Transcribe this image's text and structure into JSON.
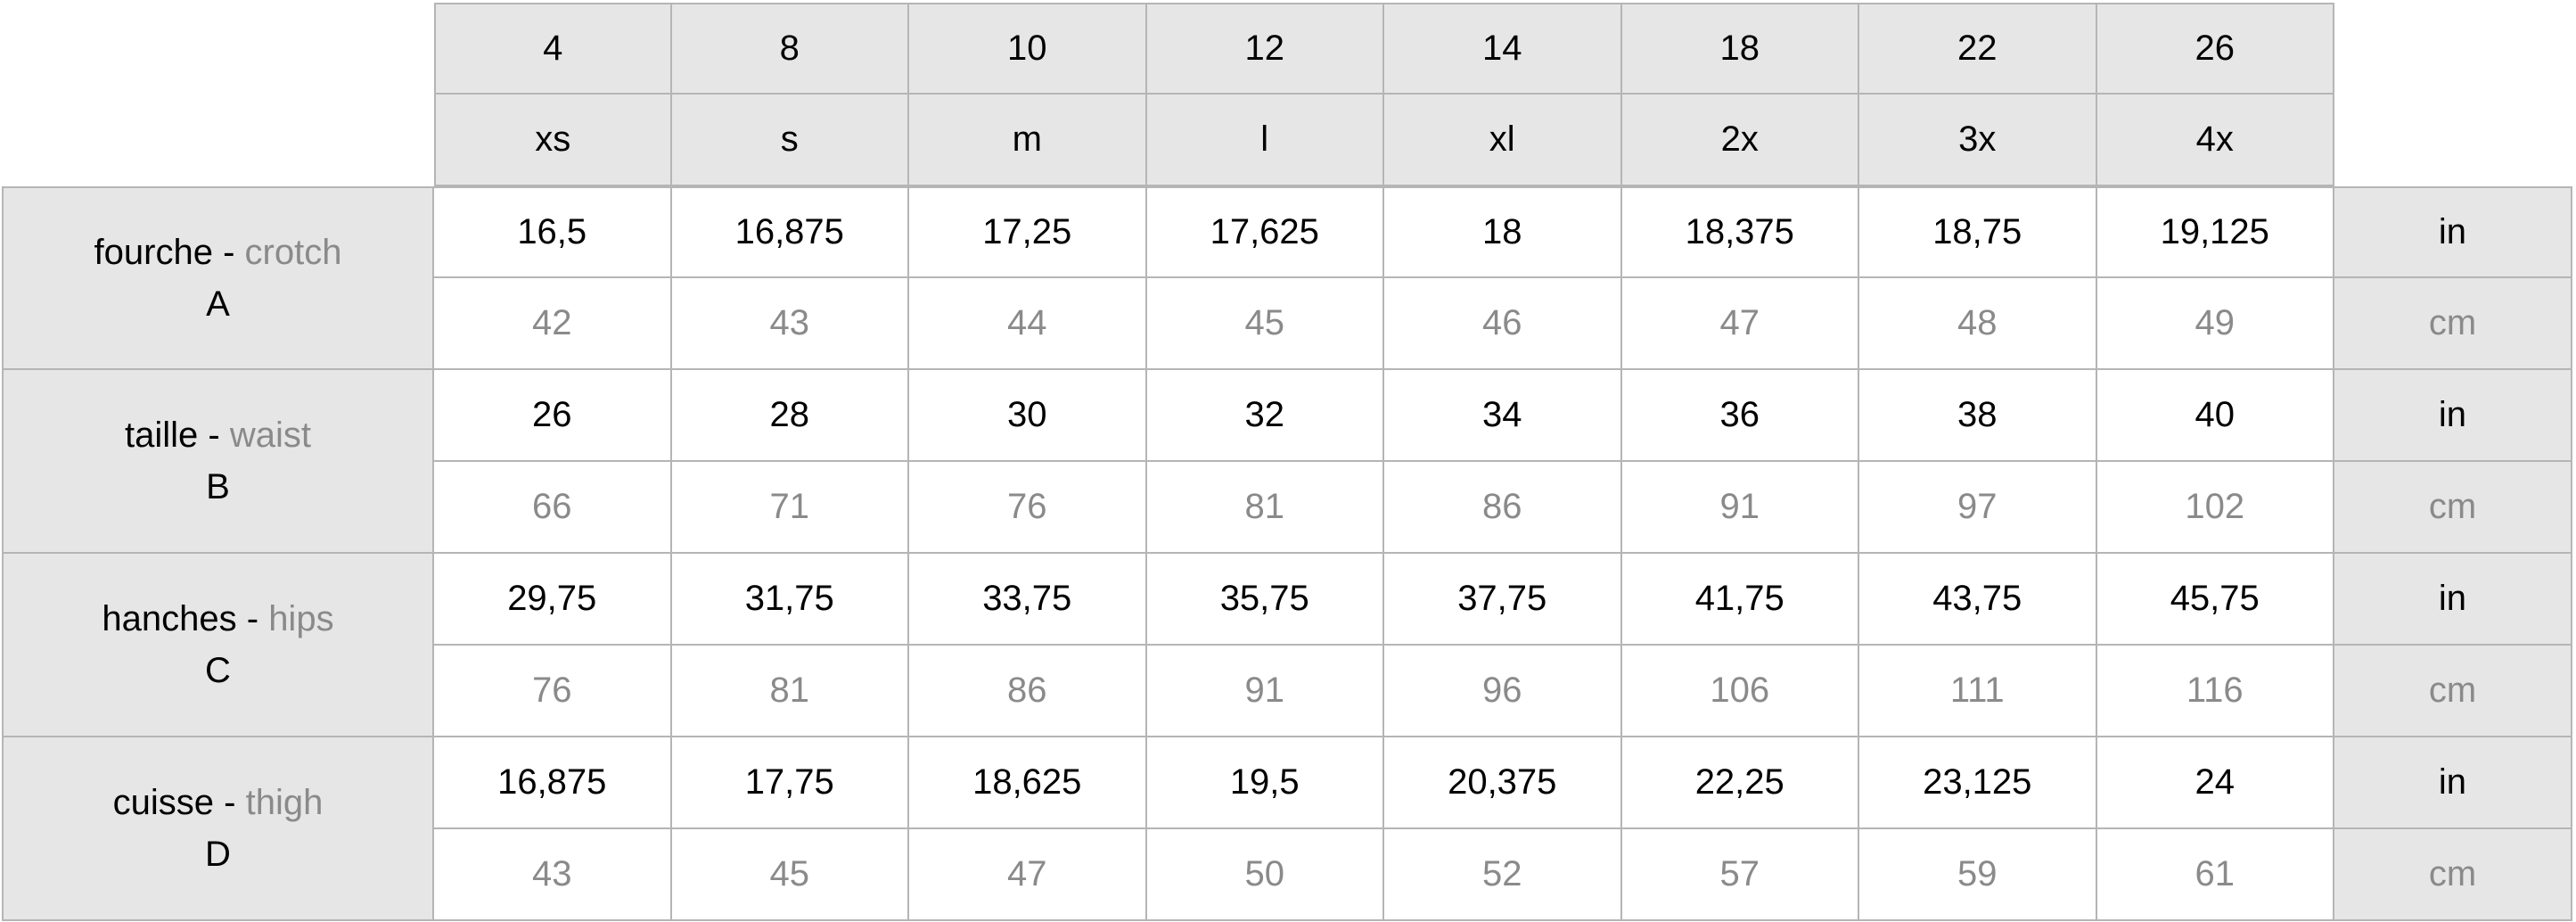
{
  "header": {
    "sizes_numeric": [
      "4",
      "8",
      "10",
      "12",
      "14",
      "18",
      "22",
      "26"
    ],
    "sizes_letter": [
      "xs",
      "s",
      "m",
      "l",
      "xl",
      "2x",
      "3x",
      "4x"
    ]
  },
  "rows": [
    {
      "fr": "fourche",
      "sep": " - ",
      "en": "crotch",
      "letter": "A",
      "in": [
        "16,5",
        "16,875",
        "17,25",
        "17,625",
        "18",
        "18,375",
        "18,75",
        "19,125"
      ],
      "cm": [
        "42",
        "43",
        "44",
        "45",
        "46",
        "47",
        "48",
        "49"
      ]
    },
    {
      "fr": "taille",
      "sep": " - ",
      "en": "waist",
      "letter": "B",
      "in": [
        "26",
        "28",
        "30",
        "32",
        "34",
        "36",
        "38",
        "40"
      ],
      "cm": [
        "66",
        "71",
        "76",
        "81",
        "86",
        "91",
        "97",
        "102"
      ]
    },
    {
      "fr": "hanches",
      "sep": " - ",
      "en": "hips",
      "letter": "C",
      "in": [
        "29,75",
        "31,75",
        "33,75",
        "35,75",
        "37,75",
        "41,75",
        "43,75",
        "45,75"
      ],
      "cm": [
        "76",
        "81",
        "86",
        "91",
        "96",
        "106",
        "111",
        "116"
      ]
    },
    {
      "fr": "cuisse",
      "sep": " - ",
      "en": "thigh",
      "letter": "D",
      "in": [
        "16,875",
        "17,75",
        "18,625",
        "19,5",
        "20,375",
        "22,25",
        "23,125",
        "24"
      ],
      "cm": [
        "43",
        "45",
        "47",
        "50",
        "52",
        "57",
        "59",
        "61"
      ]
    }
  ],
  "units": {
    "in": "in",
    "cm": "cm"
  },
  "colors": {
    "header_bg": "#e6e6e6",
    "border": "#b5b5b5",
    "metric_text": "#8a8a8a"
  }
}
